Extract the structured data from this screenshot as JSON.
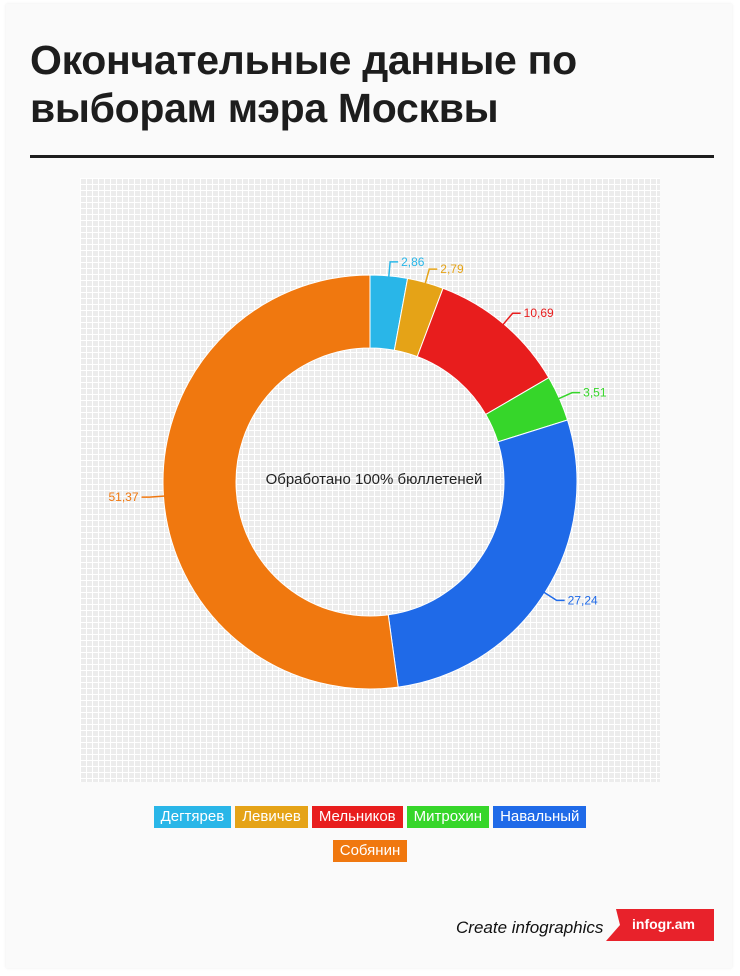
{
  "title": "Окончательные данные по выборам мэра Москвы",
  "chart_data": {
    "type": "pie",
    "donut": true,
    "center_label": "Обработано 100% бюллетеней",
    "slices": [
      {
        "name": "Дегтярев",
        "value": 2.86,
        "label": "2,86",
        "color": "#29b6e8"
      },
      {
        "name": "Левичев",
        "value": 2.79,
        "label": "2,79",
        "color": "#e5a317"
      },
      {
        "name": "Мельников",
        "value": 10.69,
        "label": "10,69",
        "color": "#e81d1d"
      },
      {
        "name": "Митрохин",
        "value": 3.51,
        "label": "3,51",
        "color": "#36d62a"
      },
      {
        "name": "Навальный",
        "value": 27.24,
        "label": "27,24",
        "color": "#1f6ae8"
      },
      {
        "name": "Собянин",
        "value": 51.37,
        "label": "51,37",
        "color": "#f0780f"
      }
    ],
    "legend_placement": "bottom",
    "grid": true
  },
  "footer": {
    "text": "Create infographics",
    "brand": "infogr.am",
    "brand_color": "#e8222b"
  }
}
